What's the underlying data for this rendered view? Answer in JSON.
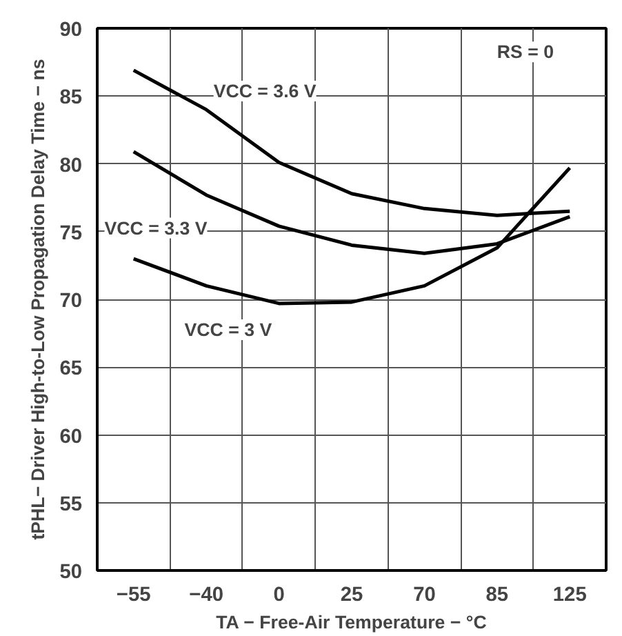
{
  "chart_data": {
    "type": "line",
    "xlabel": "TA − Free-Air Temperature − °C",
    "ylabel": "tPHL− Driver High-to-Low Propagation Delay Time − ns",
    "categories": [
      "−55",
      "−40",
      "0",
      "25",
      "70",
      "85",
      "125"
    ],
    "series": [
      {
        "name": "VCC = 3.6 V",
        "color": "#000000",
        "values": [
          86.9,
          84.0,
          80.1,
          77.8,
          76.7,
          76.2,
          76.5
        ]
      },
      {
        "name": "VCC = 3.3 V",
        "color": "#000000",
        "values": [
          80.9,
          77.7,
          75.4,
          74.0,
          73.4,
          74.1,
          76.1
        ]
      },
      {
        "name": "VCC = 3 V",
        "color": "#000000",
        "values": [
          73.0,
          71.0,
          69.7,
          69.8,
          71.0,
          73.8,
          79.7
        ]
      }
    ],
    "ylim": [
      50,
      90
    ],
    "yticks": [
      50,
      55,
      60,
      65,
      70,
      75,
      80,
      85,
      90
    ],
    "grid": true,
    "annotations": [
      "RS = 0"
    ]
  }
}
